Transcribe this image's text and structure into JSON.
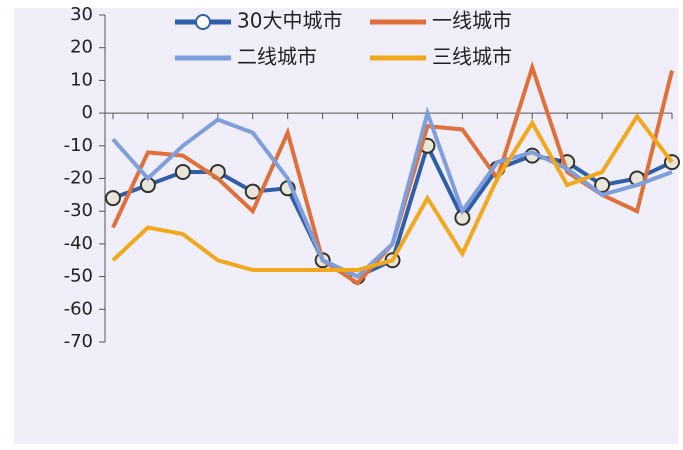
{
  "chart_data": {
    "type": "line",
    "categories": [
      null,
      null,
      null,
      null,
      null,
      null,
      null,
      null,
      null,
      null,
      null,
      null,
      null,
      null,
      null,
      null,
      null
    ],
    "series": [
      {
        "name": "30大中城市",
        "color": "#2e5fa8",
        "markers": true,
        "values": [
          -26,
          -22,
          -18,
          -18,
          -24,
          -23,
          -45,
          -50,
          -45,
          -10,
          -32,
          -17,
          -13,
          -15,
          -22,
          -20,
          -15
        ]
      },
      {
        "name": "一线城市",
        "color": "#e0703a",
        "markers": false,
        "values": [
          -35,
          -12,
          -13,
          -20,
          -30,
          -6,
          -45,
          -52,
          -40,
          -4,
          -5,
          -20,
          14,
          -18,
          -25,
          -30,
          13
        ]
      },
      {
        "name": "二线城市",
        "color": "#7f9fdc",
        "markers": false,
        "values": [
          -8,
          -20,
          -10,
          -2,
          -6,
          -20,
          -45,
          -50,
          -40,
          0,
          -30,
          -15,
          -12,
          -17,
          -25,
          -22,
          -18
        ]
      },
      {
        "name": "三线城市",
        "color": "#f2a81d",
        "markers": false,
        "values": [
          -45,
          -35,
          -37,
          -45,
          -48,
          -48,
          -48,
          -48,
          -45,
          -26,
          -43,
          -20,
          -3,
          -22,
          -18,
          -1,
          -15
        ]
      }
    ],
    "ylim": [
      -70,
      30
    ],
    "yticks": [
      -70,
      -60,
      -50,
      -40,
      -30,
      -20,
      -10,
      0,
      10,
      20,
      30
    ]
  }
}
